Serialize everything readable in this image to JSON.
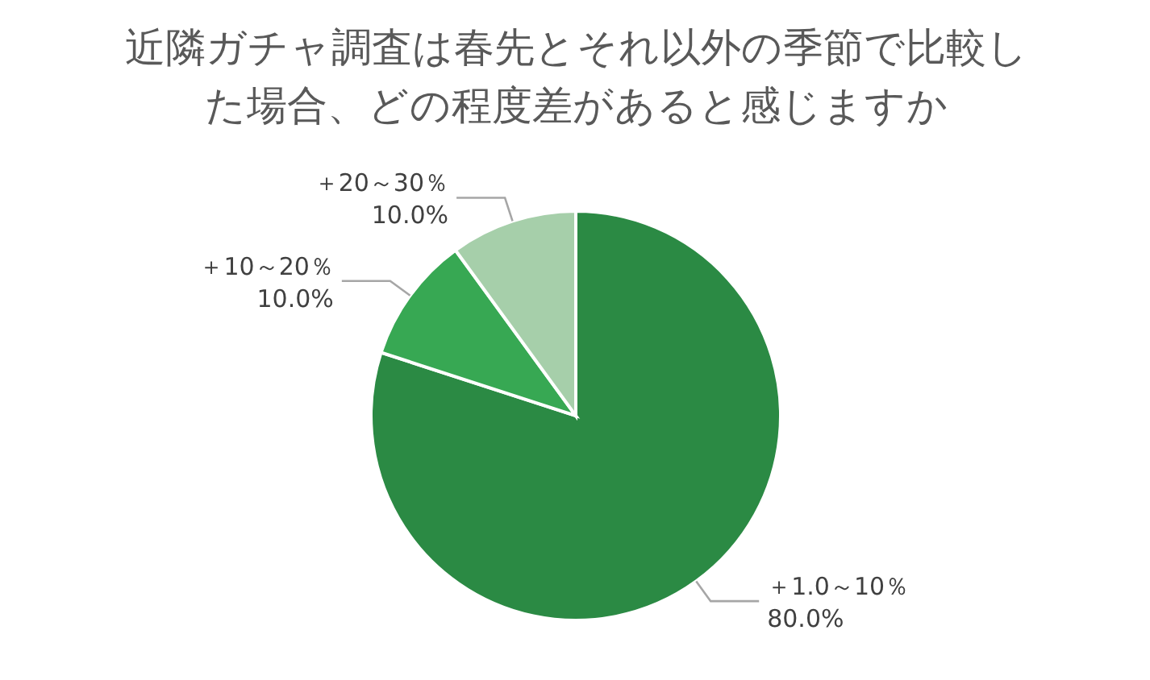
{
  "chart_data": {
    "type": "pie",
    "title": "近隣ガチャ調査は春先とそれ以外の季節で比較した場合、どの程度差があると感じますか",
    "categories": [
      "＋1.0～10％",
      "＋10～20％",
      "＋20～30％"
    ],
    "values": [
      80,
      10,
      10
    ],
    "colors": [
      "#2b8a44",
      "#37a853",
      "#a6cfaa"
    ],
    "value_labels": [
      "80.0%",
      "10.0%",
      "10.0%"
    ]
  }
}
